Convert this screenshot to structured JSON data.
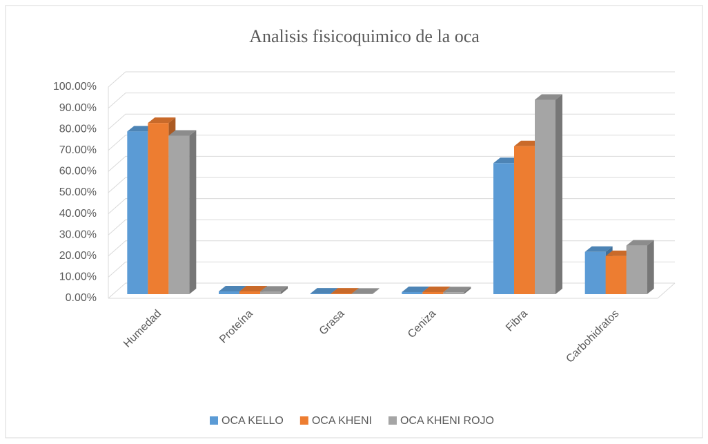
{
  "chart_data": {
    "type": "bar3d",
    "title": "Analisis fisicoquimico de la oca",
    "categories": [
      "Humedad",
      "Proteína",
      "Grasa",
      "Ceniza",
      "Fibra",
      "Carbohidratos"
    ],
    "series": [
      {
        "name": "OCA KELLO",
        "color": "#5b9bd5",
        "values": [
          77,
          1.3,
          0.3,
          1.0,
          62,
          20
        ]
      },
      {
        "name": "OCA KHENI",
        "color": "#ed7d31",
        "values": [
          81,
          1.3,
          0.3,
          1.0,
          70,
          18
        ]
      },
      {
        "name": "OCA KHENI ROJO",
        "color": "#a5a5a5",
        "values": [
          75,
          1.2,
          0.2,
          0.9,
          92,
          23
        ]
      }
    ],
    "ylim": [
      0,
      100
    ],
    "yticks": [
      {
        "value": 0,
        "label": "0.00%"
      },
      {
        "value": 10,
        "label": "10.00%"
      },
      {
        "value": 20,
        "label": "20.00%"
      },
      {
        "value": 30,
        "label": "30.00%"
      },
      {
        "value": 40,
        "label": "40.00%"
      },
      {
        "value": 50,
        "label": "50.00%"
      },
      {
        "value": 60,
        "label": "60.00%"
      },
      {
        "value": 70,
        "label": "70.00%"
      },
      {
        "value": 80,
        "label": "80.00%"
      },
      {
        "value": 90,
        "label": "90.00%"
      },
      {
        "value": 100,
        "label": "100.00%"
      }
    ],
    "grid": true,
    "legend": "bottom"
  }
}
